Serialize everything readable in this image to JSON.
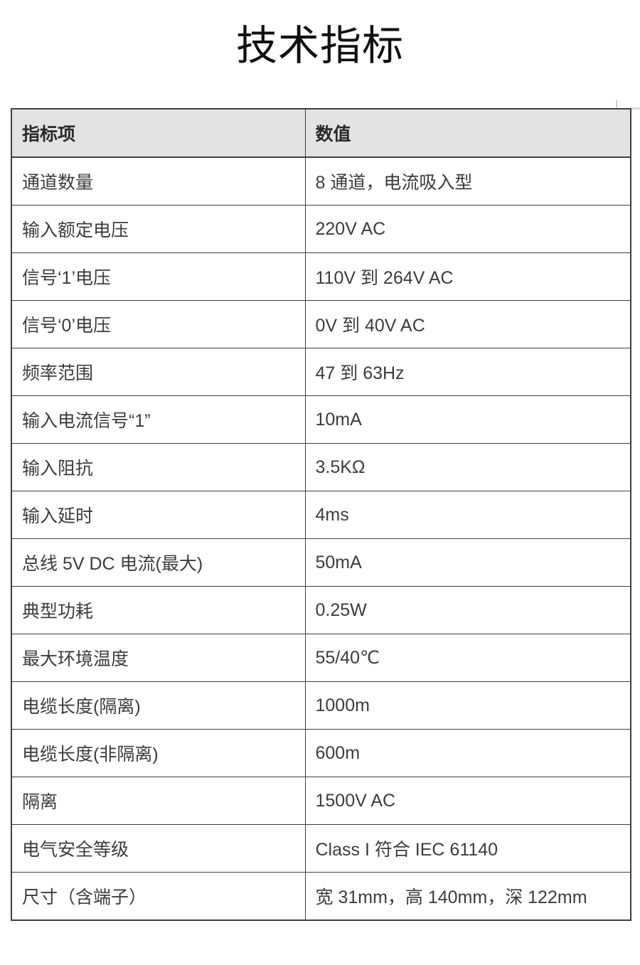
{
  "page": {
    "title": "技术指标"
  },
  "table": {
    "headers": [
      "指标项",
      "数值"
    ],
    "rows": [
      {
        "item": "通道数量",
        "value": "8 通道，电流吸入型"
      },
      {
        "item": "输入额定电压",
        "value": "220V AC"
      },
      {
        "item": "信号‘1’电压",
        "value": "110V 到 264V AC"
      },
      {
        "item": "信号‘0’电压",
        "value": "0V 到 40V AC"
      },
      {
        "item": "频率范围",
        "value": "47 到 63Hz"
      },
      {
        "item": "输入电流信号“1”",
        "value": "10mA"
      },
      {
        "item": "输入阻抗",
        "value": "3.5KΩ"
      },
      {
        "item": "输入延时",
        "value": "4ms"
      },
      {
        "item": "总线 5V DC 电流(最大)",
        "value": "50mA"
      },
      {
        "item": "典型功耗",
        "value": "0.25W"
      },
      {
        "item": "最大环境温度",
        "value": "55/40℃"
      },
      {
        "item": "电缆长度(隔离)",
        "value": "1000m"
      },
      {
        "item": "电缆长度(非隔离)",
        "value": "600m"
      },
      {
        "item": "隔离",
        "value": "1500V AC"
      },
      {
        "item": "电气安全等级",
        "value": "Class I 符合 IEC 61140"
      },
      {
        "item": "尺寸（含端子）",
        "value": "宽 31mm，高 140mm，深 122mm"
      }
    ]
  },
  "colors": {
    "header_bg": "#e3e3e3",
    "border": "#3f3f3f",
    "body_text": "#3c3c3c",
    "header_text": "#2a2a2a",
    "title_text": "#111111",
    "corner_mark": "#cfcfcf"
  }
}
